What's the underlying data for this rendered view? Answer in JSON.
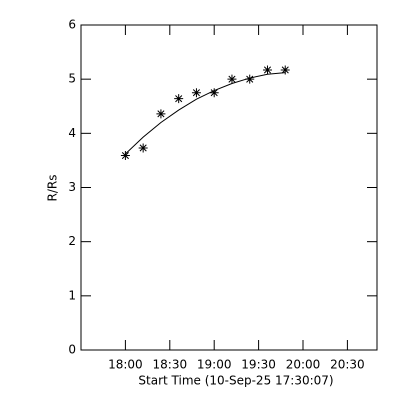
{
  "chart_data": {
    "type": "scatter",
    "x_label": "Start Time (10-Sep-25 17:30:07)",
    "y_label": "R/Rs",
    "x": [
      "18:00",
      "18:12",
      "18:24",
      "18:36",
      "18:48",
      "19:00",
      "19:12",
      "19:24",
      "19:36",
      "19:48"
    ],
    "series": [
      {
        "marker": "asterisk",
        "color": "#000000",
        "values": [
          3.59,
          3.73,
          4.36,
          4.64,
          4.75,
          4.75,
          5.0,
          5.0,
          5.17,
          5.17
        ]
      },
      {
        "marker": "line",
        "color": "#000000",
        "values": [
          3.62,
          3.93,
          4.2,
          4.43,
          4.63,
          4.79,
          4.92,
          5.02,
          5.09,
          5.12
        ]
      }
    ],
    "xlim": [
      "17:30",
      "20:50"
    ],
    "xticks": [
      "18:00",
      "18:30",
      "19:00",
      "19:30",
      "20:00",
      "20:30"
    ],
    "ylim": [
      0,
      6
    ],
    "yticks": [
      0,
      1,
      2,
      3,
      4,
      5,
      6
    ]
  }
}
